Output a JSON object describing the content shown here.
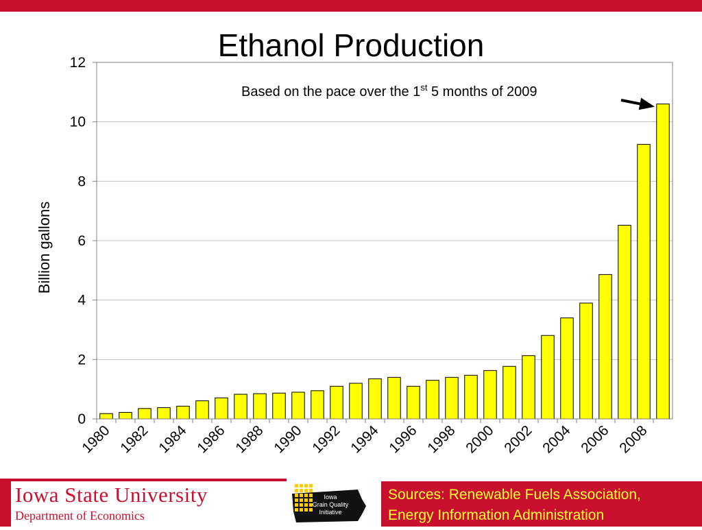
{
  "chart_data": {
    "type": "bar",
    "title": "Ethanol Production",
    "xlabel": "",
    "ylabel": "Billion gallons",
    "ylim": [
      0,
      12
    ],
    "yticks": [
      0,
      2,
      4,
      6,
      8,
      10,
      12
    ],
    "grid": true,
    "categories": [
      "1980",
      "1981",
      "1982",
      "1983",
      "1984",
      "1985",
      "1986",
      "1987",
      "1988",
      "1989",
      "1990",
      "1991",
      "1992",
      "1993",
      "1994",
      "1995",
      "1996",
      "1997",
      "1998",
      "1999",
      "2000",
      "2001",
      "2002",
      "2003",
      "2004",
      "2005",
      "2006",
      "2007",
      "2008",
      "2009"
    ],
    "x_tick_labels": [
      "1980",
      "1982",
      "1984",
      "1986",
      "1988",
      "1990",
      "1992",
      "1994",
      "1996",
      "1998",
      "2000",
      "2002",
      "2004",
      "2006",
      "2008"
    ],
    "values": [
      0.18,
      0.22,
      0.35,
      0.38,
      0.43,
      0.61,
      0.71,
      0.83,
      0.85,
      0.87,
      0.9,
      0.95,
      1.1,
      1.2,
      1.35,
      1.4,
      1.1,
      1.3,
      1.4,
      1.47,
      1.63,
      1.77,
      2.13,
      2.81,
      3.4,
      3.9,
      4.86,
      6.52,
      9.24,
      10.6
    ],
    "bar_color": "#ffff00",
    "annotation": {
      "text_before": "Based on the pace over the 1",
      "superscript": "st",
      "text_after": " 5 months of 2009",
      "target_category": "2009"
    }
  },
  "footer": {
    "university": "Iowa State University",
    "department": "Department of Economics",
    "logo_text": [
      "Iowa",
      "Grain Quality",
      "Initiative"
    ],
    "sources_line1": "Sources: Renewable Fuels Association,",
    "sources_line2": "Energy Information Administration"
  },
  "colors": {
    "isu_red": "#c8102e",
    "sources_text": "#ffff33",
    "logo_yellow": "#ffcc00"
  }
}
